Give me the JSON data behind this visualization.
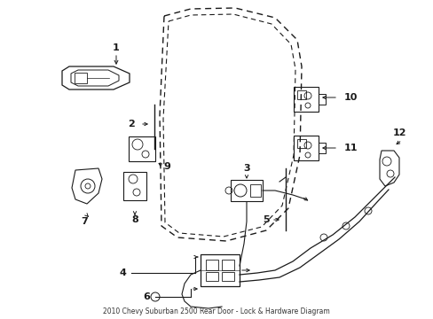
{
  "title": "2010 Chevy Suburban 2500 Rear Door - Lock & Hardware Diagram",
  "bg": "#ffffff",
  "lc": "#1a1a1a",
  "fig_w": 4.89,
  "fig_h": 3.6,
  "dpi": 100
}
